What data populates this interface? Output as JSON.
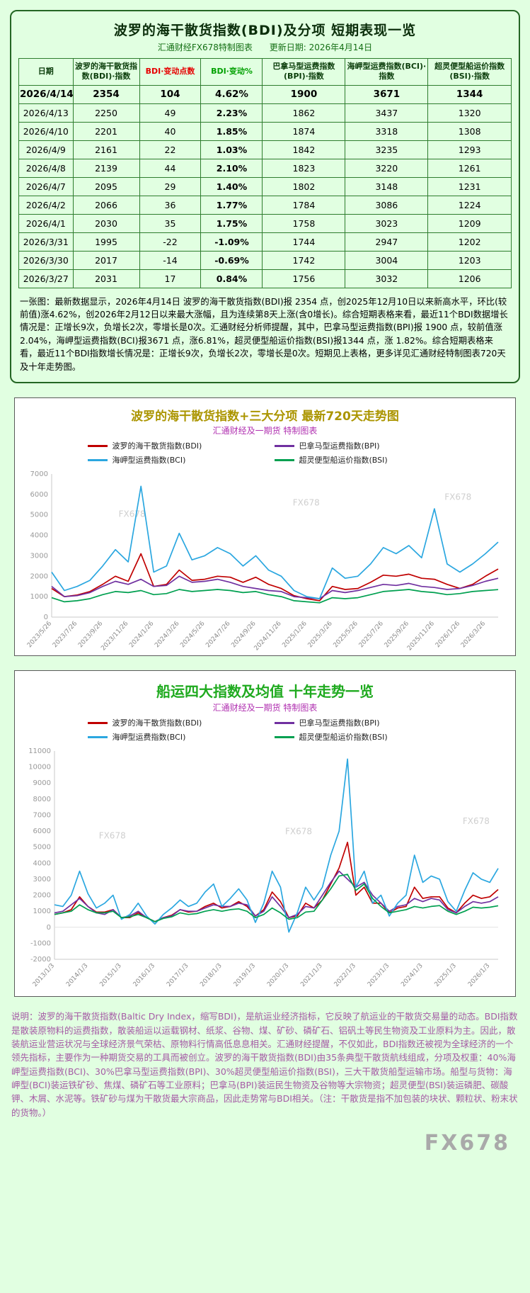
{
  "page": {
    "watermark": "FX678",
    "bg_color": "#e1ffe1"
  },
  "table_section": {
    "title": "波罗的海干散货指数(BDI)及分项  短期表现一览",
    "subtitle_left": "汇通财经FX678特制图表",
    "subtitle_right": "更新日期: 2026年4月14日",
    "columns": [
      "日期",
      "波罗的海干散货指数(BDI)·指数",
      "BDI·变动点数",
      "BDI·变动%",
      "巴拿马型运费指数(BPI)·指数",
      "海岬型运费指数(BCI)·指数",
      "超灵便型船运价指数(BSI)·指数"
    ],
    "header_colors": [
      "#0b3d0b",
      "#0b3d0b",
      "#e60000",
      "#00a000",
      "#0b3d0b",
      "#0b3d0b",
      "#0b3d0b"
    ],
    "rows": [
      [
        "2026/4/14",
        "2354",
        "104",
        "4.62%",
        "1900",
        "3671",
        "1344"
      ],
      [
        "2026/4/13",
        "2250",
        "49",
        "2.23%",
        "1862",
        "3437",
        "1320"
      ],
      [
        "2026/4/10",
        "2201",
        "40",
        "1.85%",
        "1874",
        "3318",
        "1308"
      ],
      [
        "2026/4/9",
        "2161",
        "22",
        "1.03%",
        "1842",
        "3235",
        "1293"
      ],
      [
        "2026/4/8",
        "2139",
        "44",
        "2.10%",
        "1823",
        "3220",
        "1261"
      ],
      [
        "2026/4/7",
        "2095",
        "29",
        "1.40%",
        "1802",
        "3148",
        "1231"
      ],
      [
        "2026/4/2",
        "2066",
        "36",
        "1.77%",
        "1784",
        "3086",
        "1224"
      ],
      [
        "2026/4/1",
        "2030",
        "35",
        "1.75%",
        "1758",
        "3023",
        "1209"
      ],
      [
        "2026/3/31",
        "1995",
        "-22",
        "-1.09%",
        "1744",
        "2947",
        "1202"
      ],
      [
        "2026/3/30",
        "2017",
        "-14",
        "-0.69%",
        "1742",
        "3004",
        "1203"
      ],
      [
        "2026/3/27",
        "2031",
        "17",
        "0.84%",
        "1756",
        "3032",
        "1206"
      ]
    ],
    "note": "一张图：最新数据显示，2026年4月14日 波罗的海干散货指数(BDI)报 2354 点，创2025年12月10日以来新高水平，环比(较前值)涨4.62%，创2026年2月12日以来最大涨幅，且为连续第8天上涨(含0增长)。综合短期表格来看，最近11个BDI数据增长情况是：正增长9次，负增长2次，零增长是0次。汇通财经分析师提醒，其中，巴拿马型运费指数(BPI)报 1900 点，较前值涨2.04%，海岬型运费指数(BCI)报3671 点，涨6.81%，超灵便型船运价指数(BSI)报1344 点，涨 1.82%。综合短期表格来看，最近11个BDI指数增长情况是：正增长9次，负增长2次，零增长是0次。短期见上表格，更多详见汇通财经特制图表720天及十年走势图。"
  },
  "chart_data": [
    {
      "id": "bdi-720d",
      "type": "line",
      "title": "波罗的海干散货指数+三大分项  最新720天走势图",
      "subtitle": "汇通财经及一期货 特制图表",
      "legend_position": "top",
      "grid": false,
      "ylim": [
        0,
        7000
      ],
      "ytick_step": 1000,
      "x_ticks": [
        {
          "label": "2023/5/26",
          "i": 0
        },
        {
          "label": "2023/7/26",
          "i": 2
        },
        {
          "label": "2023/9/26",
          "i": 4
        },
        {
          "label": "2023/11/26",
          "i": 6
        },
        {
          "label": "2024/1/26",
          "i": 8
        },
        {
          "label": "2024/3/26",
          "i": 10
        },
        {
          "label": "2024/5/26",
          "i": 12
        },
        {
          "label": "2024/7/26",
          "i": 14
        },
        {
          "label": "2024/9/26",
          "i": 16
        },
        {
          "label": "2024/11/26",
          "i": 18
        },
        {
          "label": "2025/1/26",
          "i": 20
        },
        {
          "label": "2025/3/26",
          "i": 22
        },
        {
          "label": "2025/5/26",
          "i": 24
        },
        {
          "label": "2025/7/26",
          "i": 26
        },
        {
          "label": "2025/9/26",
          "i": 28
        },
        {
          "label": "2025/11/26",
          "i": 30
        },
        {
          "label": "2026/1/26",
          "i": 32
        },
        {
          "label": "2026/3/26",
          "i": 34
        }
      ],
      "series": [
        {
          "name": "波罗的海干散货指数(BDI)",
          "color": "#c00000",
          "values": [
            1400,
            1000,
            1080,
            1250,
            1600,
            2000,
            1750,
            3100,
            1500,
            1600,
            2300,
            1800,
            1850,
            2000,
            1950,
            1700,
            1950,
            1600,
            1400,
            1050,
            900,
            800,
            1500,
            1350,
            1400,
            1700,
            2050,
            2000,
            2100,
            1900,
            1850,
            1600,
            1400,
            1600,
            2000,
            2354
          ]
        },
        {
          "name": "巴拿马型运费指数(BPI)",
          "color": "#7030a0",
          "values": [
            1500,
            1000,
            1050,
            1200,
            1500,
            1750,
            1600,
            1850,
            1500,
            1550,
            2000,
            1700,
            1750,
            1850,
            1700,
            1500,
            1400,
            1300,
            1250,
            1000,
            950,
            900,
            1300,
            1200,
            1300,
            1450,
            1600,
            1550,
            1650,
            1500,
            1450,
            1350,
            1400,
            1550,
            1750,
            1900
          ]
        },
        {
          "name": "海岬型运费指数(BCI)",
          "color": "#2ba7e0",
          "values": [
            2200,
            1300,
            1500,
            1800,
            2500,
            3300,
            2700,
            6400,
            2200,
            2500,
            4100,
            2800,
            3000,
            3400,
            3100,
            2500,
            3000,
            2300,
            2000,
            1300,
            1000,
            900,
            2400,
            1900,
            2000,
            2600,
            3400,
            3100,
            3500,
            2900,
            5300,
            2600,
            2200,
            2600,
            3100,
            3671
          ]
        },
        {
          "name": "超灵便型船运价指数(BSI)",
          "color": "#00a050",
          "values": [
            950,
            750,
            800,
            900,
            1100,
            1250,
            1200,
            1300,
            1100,
            1150,
            1350,
            1250,
            1300,
            1350,
            1300,
            1200,
            1250,
            1100,
            1000,
            800,
            750,
            700,
            950,
            900,
            950,
            1100,
            1250,
            1300,
            1350,
            1250,
            1200,
            1100,
            1150,
            1250,
            1300,
            1344
          ]
        }
      ]
    },
    {
      "id": "ship-10y",
      "type": "line",
      "title": "船运四大指数及均值 十年走势一览",
      "subtitle": "汇通财经及一期货 特制图表",
      "legend_position": "top",
      "grid": false,
      "ylim": [
        -2000,
        11000
      ],
      "ytick_step": 1000,
      "x_ticks": [
        {
          "label": "2013/1/3",
          "i": 0
        },
        {
          "label": "2014/1/3",
          "i": 4
        },
        {
          "label": "2015/1/3",
          "i": 8
        },
        {
          "label": "2016/1/3",
          "i": 12
        },
        {
          "label": "2017/1/3",
          "i": 16
        },
        {
          "label": "2018/1/3",
          "i": 20
        },
        {
          "label": "2019/1/3",
          "i": 24
        },
        {
          "label": "2020/1/3",
          "i": 28
        },
        {
          "label": "2021/1/3",
          "i": 32
        },
        {
          "label": "2022/1/3",
          "i": 36
        },
        {
          "label": "2023/1/3",
          "i": 40
        },
        {
          "label": "2024/1/3",
          "i": 44
        },
        {
          "label": "2025/1/3",
          "i": 48
        },
        {
          "label": "2026/1/3",
          "i": 52
        }
      ],
      "series": [
        {
          "name": "波罗的海干散货指数(BDI)",
          "color": "#c00000",
          "values": [
            800,
            900,
            1100,
            1900,
            1300,
            950,
            950,
            1100,
            600,
            600,
            900,
            600,
            350,
            600,
            750,
            1100,
            950,
            1000,
            1300,
            1500,
            1200,
            1300,
            1600,
            1300,
            700,
            1100,
            2200,
            1600,
            600,
            700,
            1500,
            1200,
            1700,
            2700,
            3700,
            5300,
            2000,
            2500,
            1500,
            1500,
            900,
            1200,
            1300,
            2500,
            1800,
            1900,
            1900,
            1200,
            900,
            1500,
            2000,
            1800,
            1900,
            2354
          ]
        },
        {
          "name": "巴拿马型运费指数(BPI)",
          "color": "#7030a0",
          "values": [
            900,
            1000,
            1400,
            1800,
            1300,
            900,
            800,
            1100,
            600,
            700,
            1000,
            600,
            350,
            600,
            700,
            1100,
            1000,
            1000,
            1200,
            1400,
            1300,
            1300,
            1500,
            1400,
            700,
            1000,
            1900,
            1300,
            600,
            800,
            1300,
            1200,
            2000,
            2800,
            3500,
            3000,
            2500,
            2800,
            2000,
            1500,
            1000,
            1300,
            1400,
            1800,
            1600,
            1800,
            1700,
            1100,
            900,
            1300,
            1600,
            1500,
            1600,
            1900
          ]
        },
        {
          "name": "海岬型运费指数(BCI)",
          "color": "#2ba7e0",
          "values": [
            1400,
            1300,
            2000,
            3500,
            2100,
            1200,
            1500,
            2000,
            500,
            800,
            1500,
            700,
            200,
            800,
            1200,
            1700,
            1300,
            1500,
            2200,
            2700,
            1300,
            1800,
            2400,
            1700,
            300,
            1500,
            3500,
            2500,
            -300,
            900,
            2500,
            1700,
            2500,
            4500,
            6000,
            10500,
            2500,
            3500,
            1500,
            2000,
            700,
            1500,
            2000,
            4500,
            2800,
            3200,
            3000,
            1600,
            1000,
            2300,
            3400,
            3000,
            2800,
            3671
          ]
        },
        {
          "name": "超灵便型船运价指数(BSI)",
          "color": "#00a050",
          "values": [
            800,
            900,
            1000,
            1400,
            1100,
            900,
            900,
            1000,
            600,
            650,
            800,
            600,
            350,
            550,
            650,
            900,
            800,
            850,
            1000,
            1100,
            1000,
            1100,
            1150,
            1000,
            600,
            800,
            1200,
            900,
            500,
            600,
            950,
            1000,
            1700,
            2400,
            3200,
            3300,
            2300,
            2700,
            1800,
            1300,
            900,
            1000,
            1100,
            1300,
            1200,
            1300,
            1350,
            1000,
            800,
            1000,
            1250,
            1200,
            1250,
            1344
          ]
        }
      ]
    }
  ],
  "footer": {
    "note": "说明：波罗的海干散货指数(Baltic Dry Index，缩写BDI)，是航运业经济指标，它反映了航运业的干散货交易量的动态。BDI指数是散装原物料的运费指数，散装船运以运载钢材、纸浆、谷物、煤、矿砂、磷矿石、铝矾土等民生物资及工业原料为主。因此，散装航运业营运状况与全球经济景气荣枯、原物料行情高低息息相关。汇通财经提醒，不仅如此，BDI指数还被视为全球经济的一个领先指标，主要作为一种期货交易的工具而被创立。波罗的海干散货指数(BDI)由35条典型干散货航线组成，分项及权重：40%海岬型运费指数(BCI)、30%巴拿马型运费指数(BPI)、30%超灵便型船运价指数(BSI)，三大干散货船型运输市场。船型与货物：海岬型(BCI)装运铁矿砂、焦煤、磷矿石等工业原料；巴拿马(BPI)装运民生物资及谷物等大宗物资；超灵便型(BSI)装运磷肥、碳酸钾、木屑、水泥等。铁矿砂与煤为干散货最大宗商品，因此走势常与BDI相关。（注：干散货是指不加包装的块状、颗粒状、粉末状的货物。）"
  }
}
